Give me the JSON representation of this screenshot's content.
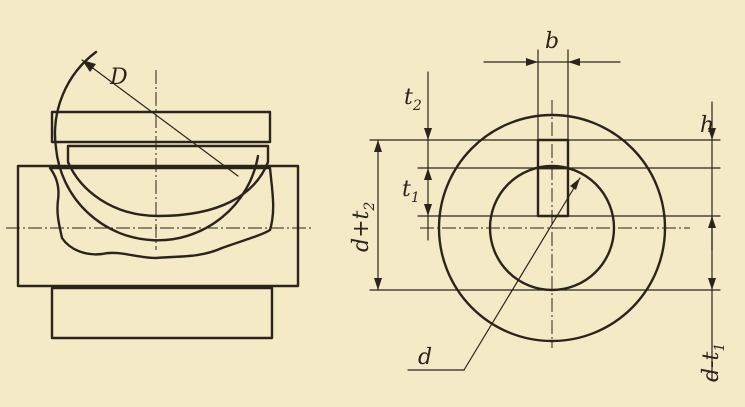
{
  "labels": {
    "D": "D",
    "b": "b",
    "t2": "t",
    "t2_sub": "2",
    "t1": "t",
    "t1_sub": "1",
    "h": "h",
    "d_plus_t2": "d+t",
    "d_plus_t2_sub": "2",
    "d": "d",
    "d_minus_t1": "d-t",
    "d_minus_t1_sub": "1"
  },
  "colors": {
    "paper": "#f4ebc6",
    "ink": "#2a241c"
  }
}
